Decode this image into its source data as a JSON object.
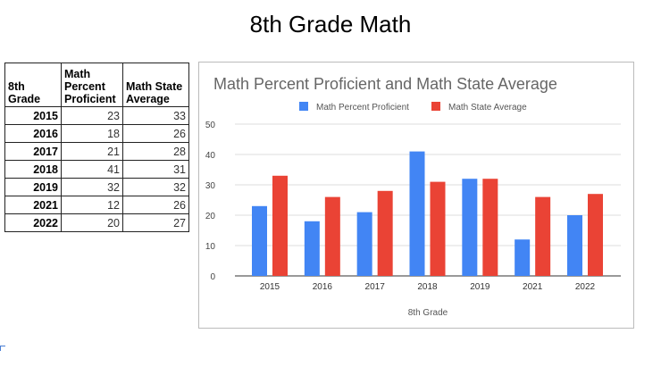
{
  "page_title": "8th Grade Math",
  "table": {
    "headers": [
      "8th Grade",
      "Math Percent Proficient",
      "Math State Average"
    ],
    "rows": [
      [
        "2015",
        "23",
        "33"
      ],
      [
        "2016",
        "18",
        "26"
      ],
      [
        "2017",
        "21",
        "28"
      ],
      [
        "2018",
        "41",
        "31"
      ],
      [
        "2019",
        "32",
        "32"
      ],
      [
        "2021",
        "12",
        "26"
      ],
      [
        "2022",
        "20",
        "27"
      ]
    ]
  },
  "chart_data": {
    "type": "bar",
    "title": "Math Percent Proficient and Math State Average",
    "xlabel": "8th Grade",
    "ylabel": "",
    "categories": [
      "2015",
      "2016",
      "2017",
      "2018",
      "2019",
      "2021",
      "2022"
    ],
    "series": [
      {
        "name": "Math Percent Proficient",
        "color": "#4285f4",
        "values": [
          23,
          18,
          21,
          41,
          32,
          12,
          20
        ]
      },
      {
        "name": "Math State Average",
        "color": "#ea4335",
        "values": [
          33,
          26,
          28,
          31,
          32,
          26,
          27
        ]
      }
    ],
    "ylim": [
      0,
      50
    ],
    "yticks": [
      0,
      10,
      20,
      30,
      40,
      50
    ],
    "grid": true,
    "legend": "top"
  }
}
